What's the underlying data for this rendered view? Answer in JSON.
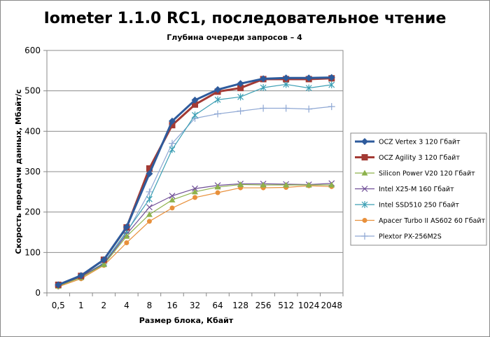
{
  "chart_data": {
    "type": "line",
    "title": "Iometer 1.1.0 RC1, последовательное чтение",
    "subtitle": "Глубина очереди запросов – 4",
    "xlabel": "Размер блока, Кбайт",
    "ylabel": "Скорость передачи данных, Мбайт/с",
    "categories": [
      "0,5",
      "1",
      "2",
      "4",
      "8",
      "16",
      "32",
      "64",
      "128",
      "256",
      "512",
      "1024",
      "2048"
    ],
    "ylim": [
      0,
      600
    ],
    "yticks": [
      0,
      100,
      200,
      300,
      400,
      500,
      600
    ],
    "grid": true,
    "legend_position": "right",
    "series": [
      {
        "name": "OCZ Vertex 3 120 Гбайт",
        "color": "#2E5B9C",
        "marker": "diamond",
        "values": [
          20,
          43,
          82,
          163,
          295,
          425,
          477,
          503,
          518,
          530,
          532,
          532,
          533
        ]
      },
      {
        "name": "OCZ Agility 3 120 Гбайт",
        "color": "#A33A34",
        "marker": "square",
        "values": [
          20,
          42,
          82,
          162,
          308,
          415,
          466,
          498,
          507,
          529,
          529,
          529,
          531
        ]
      },
      {
        "name": "Silicon Power V20 120 Гбайт",
        "color": "#8DB24C",
        "marker": "triangle",
        "values": [
          17,
          38,
          70,
          140,
          194,
          230,
          250,
          262,
          268,
          267,
          267,
          267,
          267
        ]
      },
      {
        "name": "Intel X25-M 160 Гбайт",
        "color": "#6F4E96",
        "marker": "x",
        "values": [
          18,
          40,
          72,
          145,
          212,
          240,
          258,
          266,
          270,
          270,
          269,
          268,
          271
        ]
      },
      {
        "name": "Intel SSD510 250 Гбайт",
        "color": "#3C9FB4",
        "marker": "asterisk",
        "values": [
          18,
          40,
          74,
          152,
          232,
          355,
          440,
          478,
          485,
          508,
          516,
          507,
          515
        ]
      },
      {
        "name": "Apacer Turbo II AS602 60 Гбайт",
        "color": "#E8903B",
        "marker": "circle",
        "values": [
          15,
          35,
          68,
          124,
          177,
          210,
          236,
          248,
          260,
          260,
          261,
          265,
          263
        ]
      },
      {
        "name": "Plextor PX-256M2S",
        "color": "#8FA8D4",
        "marker": "plus",
        "values": [
          17,
          38,
          72,
          148,
          250,
          370,
          432,
          443,
          450,
          457,
          457,
          455,
          461
        ]
      }
    ]
  }
}
